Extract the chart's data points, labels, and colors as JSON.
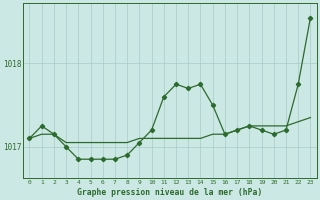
{
  "x": [
    0,
    1,
    2,
    3,
    4,
    5,
    6,
    7,
    8,
    9,
    10,
    11,
    12,
    13,
    14,
    15,
    16,
    17,
    18,
    19,
    20,
    21,
    22,
    23
  ],
  "y_main": [
    1017.1,
    1017.25,
    1017.15,
    1017.0,
    1016.85,
    1016.85,
    1016.85,
    1016.85,
    1016.9,
    1017.05,
    1017.2,
    1017.6,
    1017.75,
    1017.7,
    1017.75,
    1017.5,
    1017.15,
    1017.2,
    1017.25,
    1017.2,
    1017.15,
    1017.2,
    1017.75,
    1018.55
  ],
  "y_trend": [
    1017.1,
    1017.15,
    1017.15,
    1017.05,
    1017.05,
    1017.05,
    1017.05,
    1017.05,
    1017.05,
    1017.1,
    1017.1,
    1017.1,
    1017.1,
    1017.1,
    1017.1,
    1017.15,
    1017.15,
    1017.2,
    1017.25,
    1017.25,
    1017.25,
    1017.25,
    1017.3,
    1017.35
  ],
  "title": "Graphe pression niveau de la mer (hPa)",
  "bg_color": "#cce8e4",
  "line_color": "#2d6a2d",
  "grid_color": "#a8ccc8",
  "ylim_min": 1016.62,
  "ylim_max": 1018.72,
  "yticks": [
    1017,
    1018
  ],
  "xticks": [
    0,
    1,
    2,
    3,
    4,
    5,
    6,
    7,
    8,
    9,
    10,
    11,
    12,
    13,
    14,
    15,
    16,
    17,
    18,
    19,
    20,
    21,
    22,
    23
  ],
  "marker": "D",
  "markersize": 2.2,
  "linewidth": 0.9,
  "tick_fontsize": 4.5,
  "ytick_fontsize": 5.5,
  "title_fontsize": 5.8
}
